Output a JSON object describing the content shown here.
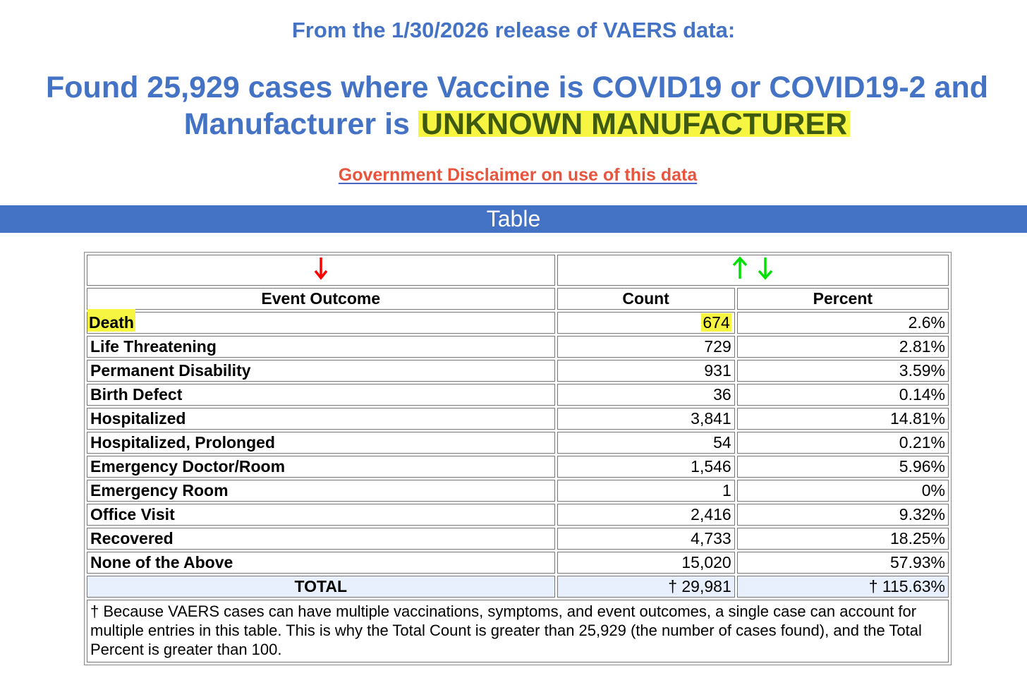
{
  "header": {
    "release_line": "From the 1/30/2026 release of VAERS data:",
    "headline_line1": "Found 25,929 cases where Vaccine is COVID19 or COVID19-2 and",
    "headline_line2_prefix": "Manufacturer is ",
    "headline_manufacturer": "UNKNOWN MANUFACTURER",
    "disclaimer_link": "Government Disclaimer on use of this data"
  },
  "banner": {
    "title": "Table"
  },
  "colors": {
    "heading_blue": "#4472c4",
    "link_red": "#e8553f",
    "highlight_yellow": "#f5f542",
    "arrow_red": "#ff0000",
    "arrow_green": "#00e000",
    "total_row_bg": "#e8effd"
  },
  "table": {
    "sort_icons": {
      "outcome_column": "sort-down-red-arrow-icon",
      "count_column": [
        "sort-up-green-arrow-icon",
        "sort-down-green-arrow-icon"
      ]
    },
    "headers": {
      "outcome": "Event Outcome",
      "count": "Count",
      "percent": "Percent"
    },
    "rows": [
      {
        "outcome": "Death",
        "count": "674",
        "percent": "2.6%"
      },
      {
        "outcome": "Life Threatening",
        "count": "729",
        "percent": "2.81%"
      },
      {
        "outcome": "Permanent Disability",
        "count": "931",
        "percent": "3.59%"
      },
      {
        "outcome": "Birth Defect",
        "count": "36",
        "percent": "0.14%"
      },
      {
        "outcome": "Hospitalized",
        "count": "3,841",
        "percent": "14.81%"
      },
      {
        "outcome": "Hospitalized, Prolonged",
        "count": "54",
        "percent": "0.21%"
      },
      {
        "outcome": "Emergency Doctor/Room",
        "count": "1,546",
        "percent": "5.96%"
      },
      {
        "outcome": "Emergency Room",
        "count": "1",
        "percent": "0%"
      },
      {
        "outcome": "Office Visit",
        "count": "2,416",
        "percent": "9.32%"
      },
      {
        "outcome": "Recovered",
        "count": "4,733",
        "percent": "18.25%"
      },
      {
        "outcome": "None of the Above",
        "count": "15,020",
        "percent": "57.93%"
      }
    ],
    "total": {
      "label": "TOTAL",
      "count": "† 29,981",
      "percent": "† 115.63%"
    },
    "footnote": "† Because VAERS cases can have multiple vaccinations, symptoms, and event outcomes, a single case can account for multiple entries in this table. This is why the Total Count is greater than 25,929 (the number of cases found), and the Total Percent is greater than 100."
  }
}
